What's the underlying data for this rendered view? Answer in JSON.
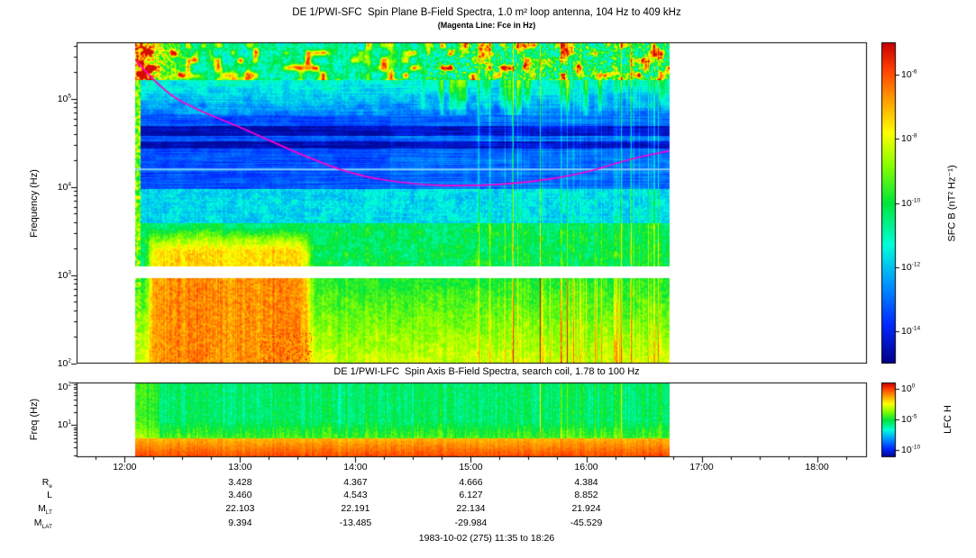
{
  "chart_data": {
    "type": "heatmap",
    "description": "Dual-panel plasma wave spectrogram: frequency vs time, color = spectral power density",
    "x_axis": {
      "domain_hours": [
        11.583,
        18.433
      ],
      "data_range_hours": [
        12.09,
        16.72
      ],
      "ticks": [
        {
          "t": 12,
          "label": "12:00"
        },
        {
          "t": 13,
          "label": "13:00"
        },
        {
          "t": 14,
          "label": "14:00"
        },
        {
          "t": 15,
          "label": "15:00"
        },
        {
          "t": 16,
          "label": "16:00"
        },
        {
          "t": 17,
          "label": "17:00"
        },
        {
          "t": 18,
          "label": "18:00"
        }
      ]
    },
    "panels": [
      {
        "id": "sfc",
        "title": "DE 1/PWI-SFC  Spin Plane B-Field Spectra, 1.0 m² loop antenna, 104 Hz to 409 kHz",
        "subtitle": "(Magenta Line: Fce in Hz)",
        "ylabel": "Frequency (Hz)",
        "log_f_range": [
          2.0,
          5.64
        ],
        "ytick_exponents": [
          5,
          4,
          3,
          2
        ],
        "colorbar": {
          "label": "SFC B (nT² Hz⁻¹)",
          "log_range": [
            -15,
            -5
          ],
          "tick_exponents": [
            -6,
            -8,
            -10,
            -12,
            -14
          ]
        },
        "features": {
          "white_gap_logf": [
            2.97,
            3.11
          ],
          "cyan_line_logf": 4.2,
          "cyan_line_color": "#7fd2ff",
          "dark_band_logf": [
            [
              4.44,
              4.52
            ],
            [
              4.58,
              4.7
            ]
          ],
          "hiss_blob": {
            "t_range": [
              12.15,
              13.67
            ],
            "logf_max": 3.55
          },
          "fce_line_color": "#ff00cc",
          "fce_points": [
            [
              12.1,
              5.43
            ],
            [
              12.33,
              5.08
            ],
            [
              12.67,
              4.85
            ],
            [
              13.0,
              4.68
            ],
            [
              13.5,
              4.38
            ],
            [
              14.0,
              4.13
            ],
            [
              14.5,
              4.03
            ],
            [
              15.0,
              4.01
            ],
            [
              15.5,
              4.05
            ],
            [
              16.0,
              4.16
            ],
            [
              16.35,
              4.31
            ],
            [
              16.72,
              4.41
            ]
          ]
        }
      },
      {
        "id": "lfc",
        "title": "DE 1/PWI-LFC  Spin Axis B-Field Spectra, search coil, 1.78 to 100 Hz",
        "ylabel": "Freq (Hz)",
        "log_f_range": [
          0.25,
          2.0
        ],
        "ytick_exponents": [
          2,
          1
        ],
        "colorbar": {
          "label": "LFC H",
          "log_range": [
            -11.2,
            1
          ],
          "tick_exponents": [
            0,
            -5,
            -10
          ]
        },
        "features": {
          "red_band_logf_max": 0.7
        }
      }
    ],
    "colormap_stops": [
      [
        0.0,
        0,
        0,
        130
      ],
      [
        0.12,
        0,
        40,
        255
      ],
      [
        0.25,
        0,
        150,
        255
      ],
      [
        0.37,
        0,
        255,
        220
      ],
      [
        0.5,
        0,
        230,
        60
      ],
      [
        0.62,
        140,
        255,
        0
      ],
      [
        0.72,
        255,
        255,
        0
      ],
      [
        0.82,
        255,
        160,
        0
      ],
      [
        0.92,
        255,
        60,
        0
      ],
      [
        1.0,
        200,
        0,
        0
      ]
    ],
    "ephemeris": {
      "column_hours": [
        13,
        14,
        15,
        16
      ],
      "rows": [
        {
          "label_main": "R",
          "label_sub": "e",
          "values": [
            "3.428",
            "4.367",
            "4.666",
            "4.384"
          ]
        },
        {
          "label_main": "L",
          "label_sub": "",
          "values": [
            "3.460",
            "4.543",
            "6.127",
            "8.852"
          ]
        },
        {
          "label_main": "M",
          "label_sub": "LT",
          "values": [
            "22.103",
            "22.191",
            "22.134",
            "21.924"
          ]
        },
        {
          "label_main": "M",
          "label_sub": "LAT",
          "values": [
            "9.394",
            "-13.485",
            "-29.984",
            "-45.529"
          ]
        }
      ]
    },
    "footer": "1983-10-02 (275) 11:35 to 18:26"
  }
}
